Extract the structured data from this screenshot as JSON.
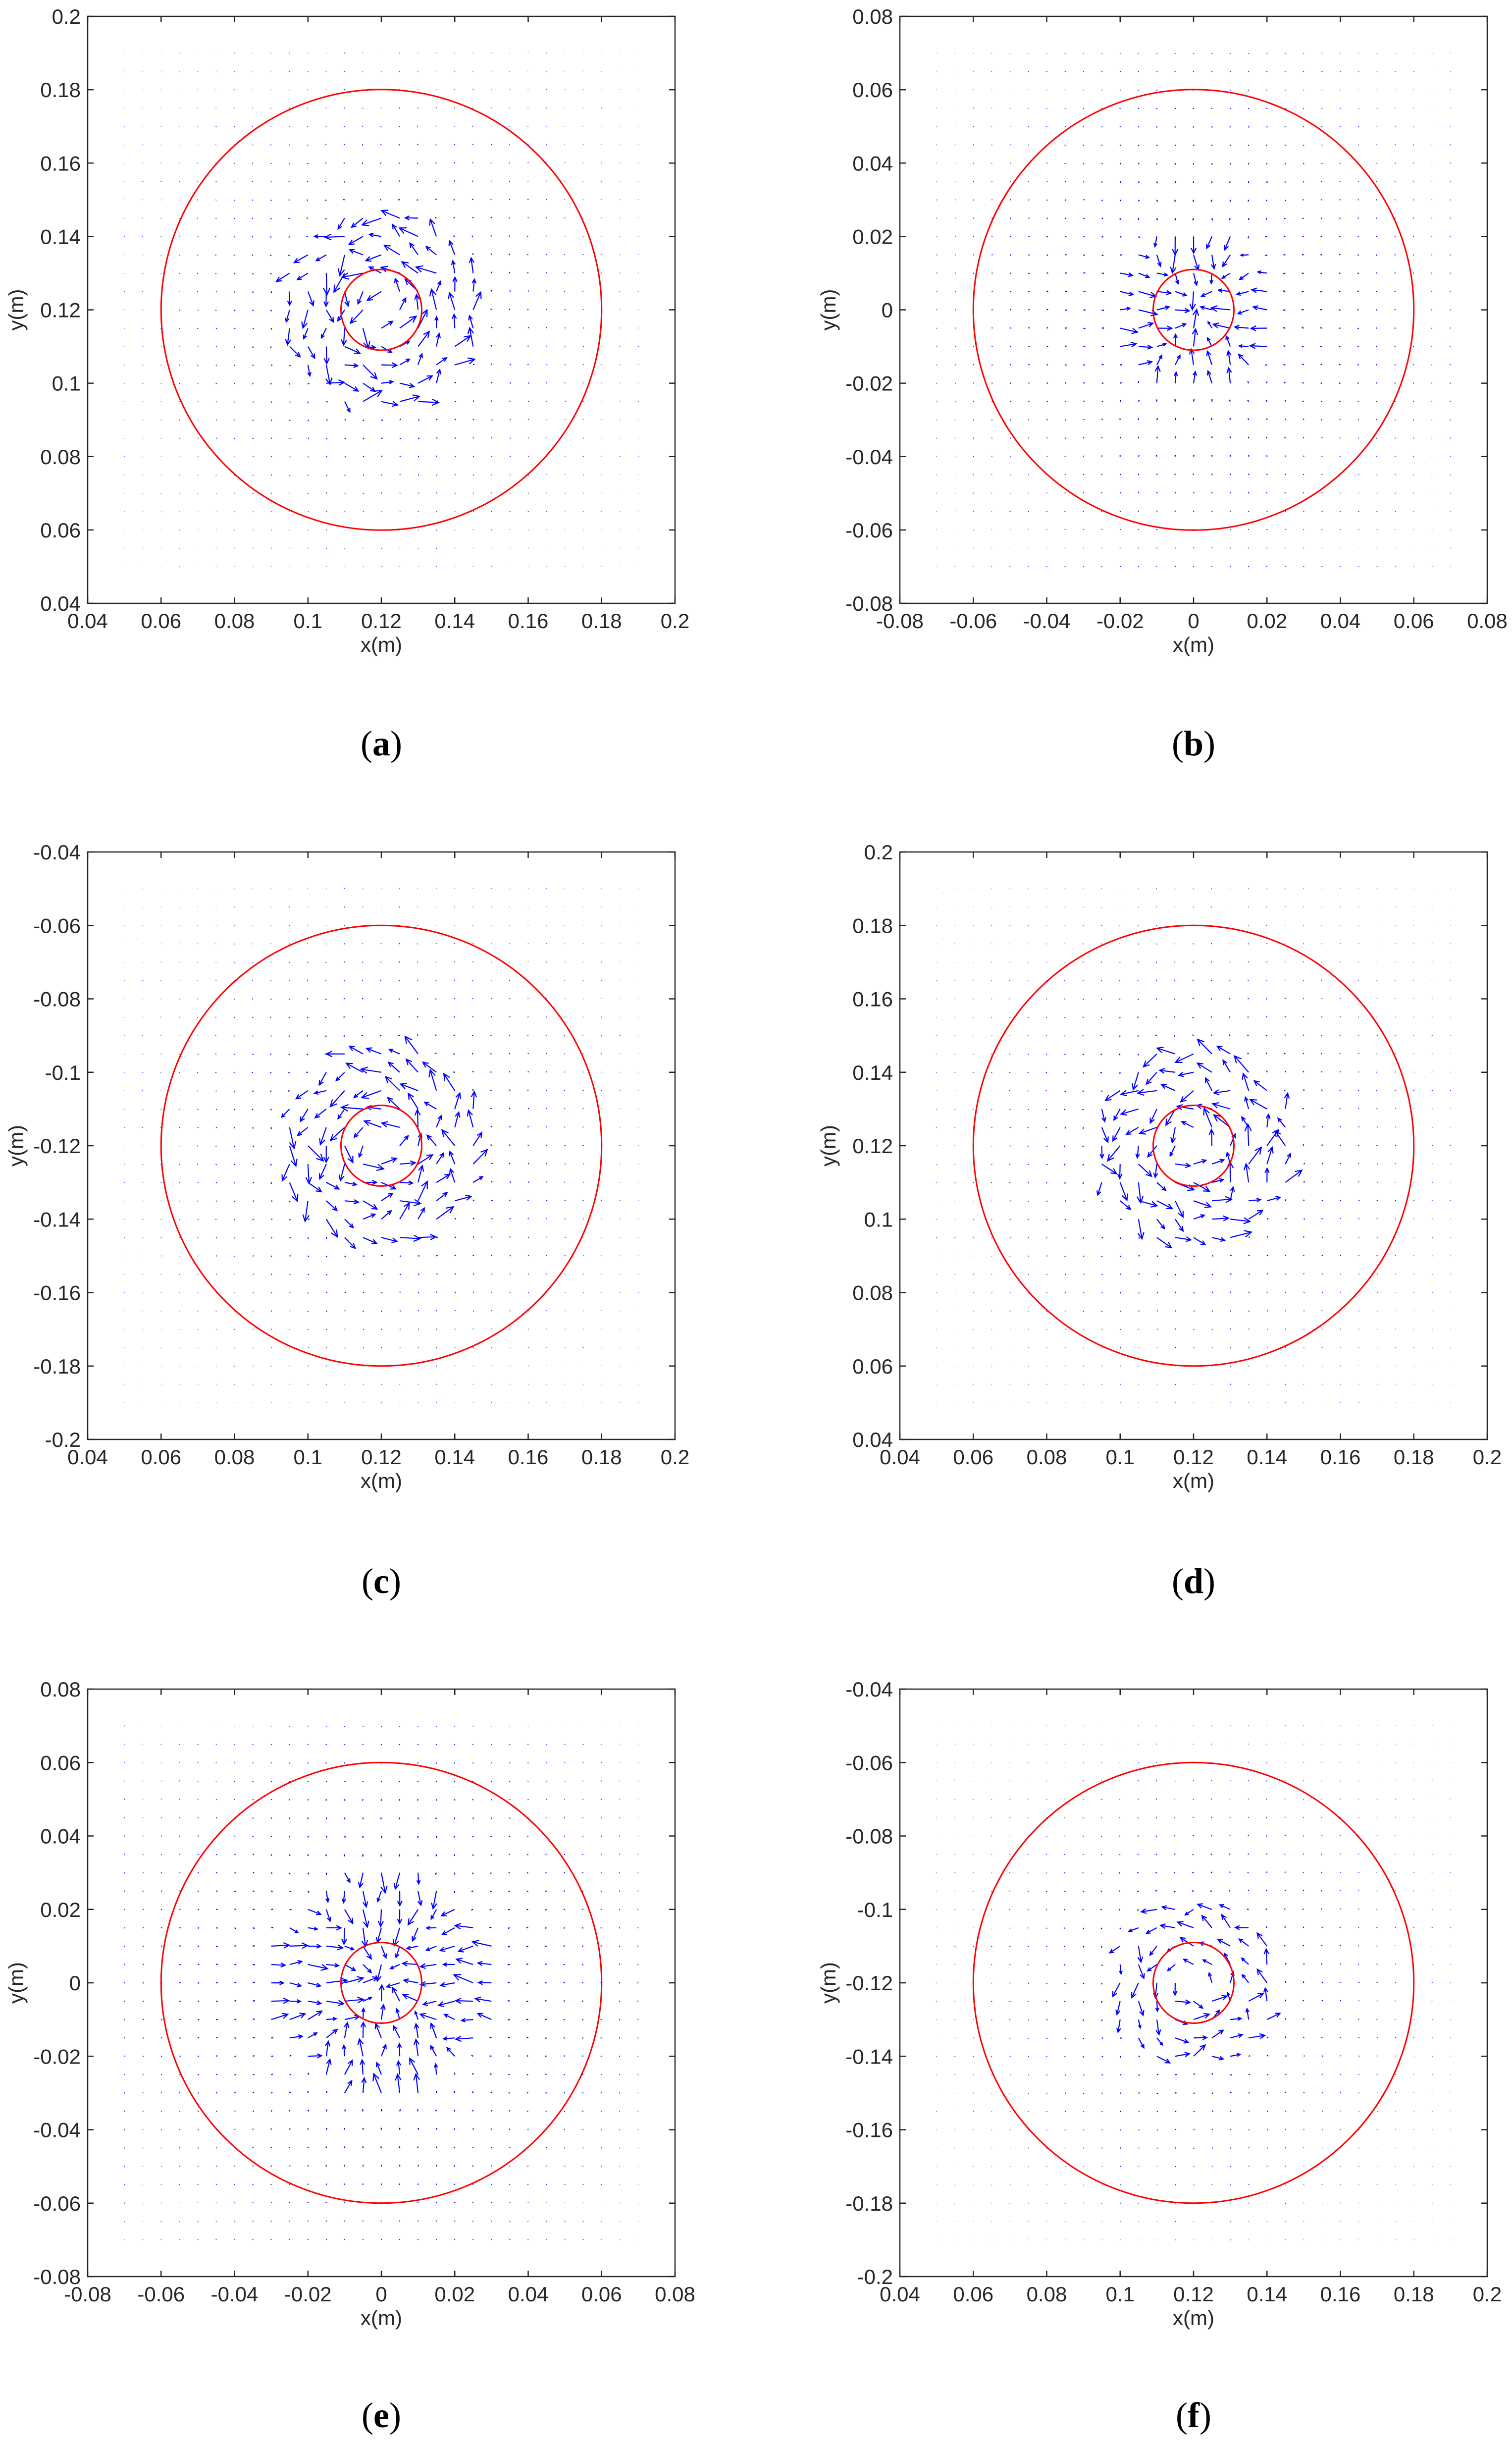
{
  "figure": {
    "description_units": "Quiver plots of velocity field; x and y in metres",
    "colors": {
      "quiver": "#0000ff",
      "circle": "#ff0000",
      "axis": "#262626"
    }
  },
  "chart_data": [
    {
      "type": "quiver",
      "panel_label": "a",
      "xlabel": "x(m)",
      "ylabel": "y(m)",
      "xlim": [
        0.04,
        0.2
      ],
      "ylim": [
        0.04,
        0.2
      ],
      "xticks": [
        "0.04",
        "0.06",
        "0.08",
        "0.1",
        "0.12",
        "0.14",
        "0.16",
        "0.18",
        "0.2"
      ],
      "yticks": [
        "0.04",
        "0.06",
        "0.08",
        "0.1",
        "0.12",
        "0.14",
        "0.16",
        "0.18",
        "0.2"
      ],
      "center": [
        0.12,
        0.12
      ],
      "outer_radius": 0.06,
      "inner_radius": 0.011,
      "grid_range": [
        0.05,
        0.19
      ],
      "grid_count": 29,
      "pattern": "vortex",
      "active_radius": 0.027,
      "strength": 0.9
    },
    {
      "type": "quiver",
      "panel_label": "b",
      "xlabel": "x(m)",
      "ylabel": "y(m)",
      "xlim": [
        -0.08,
        0.08
      ],
      "ylim": [
        -0.08,
        0.08
      ],
      "xticks": [
        "-0.08",
        "-0.06",
        "-0.04",
        "-0.02",
        "0",
        "0.02",
        "0.04",
        "0.06",
        "0.08"
      ],
      "yticks": [
        "-0.08",
        "-0.06",
        "-0.04",
        "-0.02",
        "0",
        "0.02",
        "0.04",
        "0.06",
        "0.08"
      ],
      "center": [
        0,
        0
      ],
      "outer_radius": 0.06,
      "inner_radius": 0.011,
      "grid_range": [
        -0.07,
        0.07
      ],
      "grid_count": 29,
      "pattern": "cross",
      "active_radius": 0.024,
      "strength": 0.8
    },
    {
      "type": "quiver",
      "panel_label": "c",
      "xlabel": "x(m)",
      "ylabel": "y(m)",
      "xlim": [
        0.04,
        0.2
      ],
      "ylim": [
        -0.2,
        -0.04
      ],
      "xticks": [
        "0.04",
        "0.06",
        "0.08",
        "0.1",
        "0.12",
        "0.14",
        "0.16",
        "0.18",
        "0.2"
      ],
      "yticks": [
        "-0.2",
        "-0.18",
        "-0.16",
        "-0.14",
        "-0.12",
        "-0.1",
        "-0.08",
        "-0.06",
        "-0.04"
      ],
      "center": [
        0.12,
        -0.12
      ],
      "outer_radius": 0.06,
      "inner_radius": 0.011,
      "grid_range": [
        0.05,
        0.19
      ],
      "grid_count": 29,
      "pattern": "vortex",
      "active_radius": 0.027,
      "strength": 0.9
    },
    {
      "type": "quiver",
      "panel_label": "d",
      "xlabel": "x(m)",
      "ylabel": "y(m)",
      "xlim": [
        0.04,
        0.2
      ],
      "ylim": [
        0.04,
        0.2
      ],
      "xticks": [
        "0.04",
        "0.06",
        "0.08",
        "0.1",
        "0.12",
        "0.14",
        "0.16",
        "0.18",
        "0.2"
      ],
      "yticks": [
        "0.04",
        "0.06",
        "0.08",
        "0.1",
        "0.12",
        "0.14",
        "0.16",
        "0.18",
        "0.2"
      ],
      "center": [
        0.12,
        0.12
      ],
      "outer_radius": 0.06,
      "inner_radius": 0.011,
      "grid_range": [
        0.05,
        0.19
      ],
      "grid_count": 29,
      "pattern": "vortex",
      "active_radius": 0.027,
      "strength": 0.9
    },
    {
      "type": "quiver",
      "panel_label": "e",
      "xlabel": "x(m)",
      "ylabel": "y(m)",
      "xlim": [
        -0.08,
        0.08
      ],
      "ylim": [
        -0.08,
        0.08
      ],
      "xticks": [
        "-0.08",
        "-0.06",
        "-0.04",
        "-0.02",
        "0",
        "0.02",
        "0.04",
        "0.06",
        "0.08"
      ],
      "yticks": [
        "-0.08",
        "-0.06",
        "-0.04",
        "-0.02",
        "0",
        "0.02",
        "0.04",
        "0.06",
        "0.08"
      ],
      "center": [
        0,
        0
      ],
      "outer_radius": 0.06,
      "inner_radius": 0.011,
      "grid_range": [
        -0.07,
        0.07
      ],
      "grid_count": 29,
      "pattern": "cross",
      "active_radius": 0.032,
      "strength": 0.9
    },
    {
      "type": "quiver",
      "panel_label": "f",
      "xlabel": "x(m)",
      "ylabel": "y(m)",
      "xlim": [
        0.04,
        0.2
      ],
      "ylim": [
        -0.2,
        -0.04
      ],
      "xticks": [
        "0.04",
        "0.06",
        "0.08",
        "0.1",
        "0.12",
        "0.14",
        "0.16",
        "0.18",
        "0.2"
      ],
      "yticks": [
        "-0.2",
        "-0.18",
        "-0.16",
        "-0.14",
        "-0.12",
        "-0.1",
        "-0.08",
        "-0.06",
        "-0.04"
      ],
      "center": [
        0.12,
        -0.12
      ],
      "outer_radius": 0.06,
      "inner_radius": 0.011,
      "grid_range": [
        0.05,
        0.19
      ],
      "grid_count": 29,
      "pattern": "vortex",
      "active_radius": 0.024,
      "strength": 0.7
    }
  ]
}
